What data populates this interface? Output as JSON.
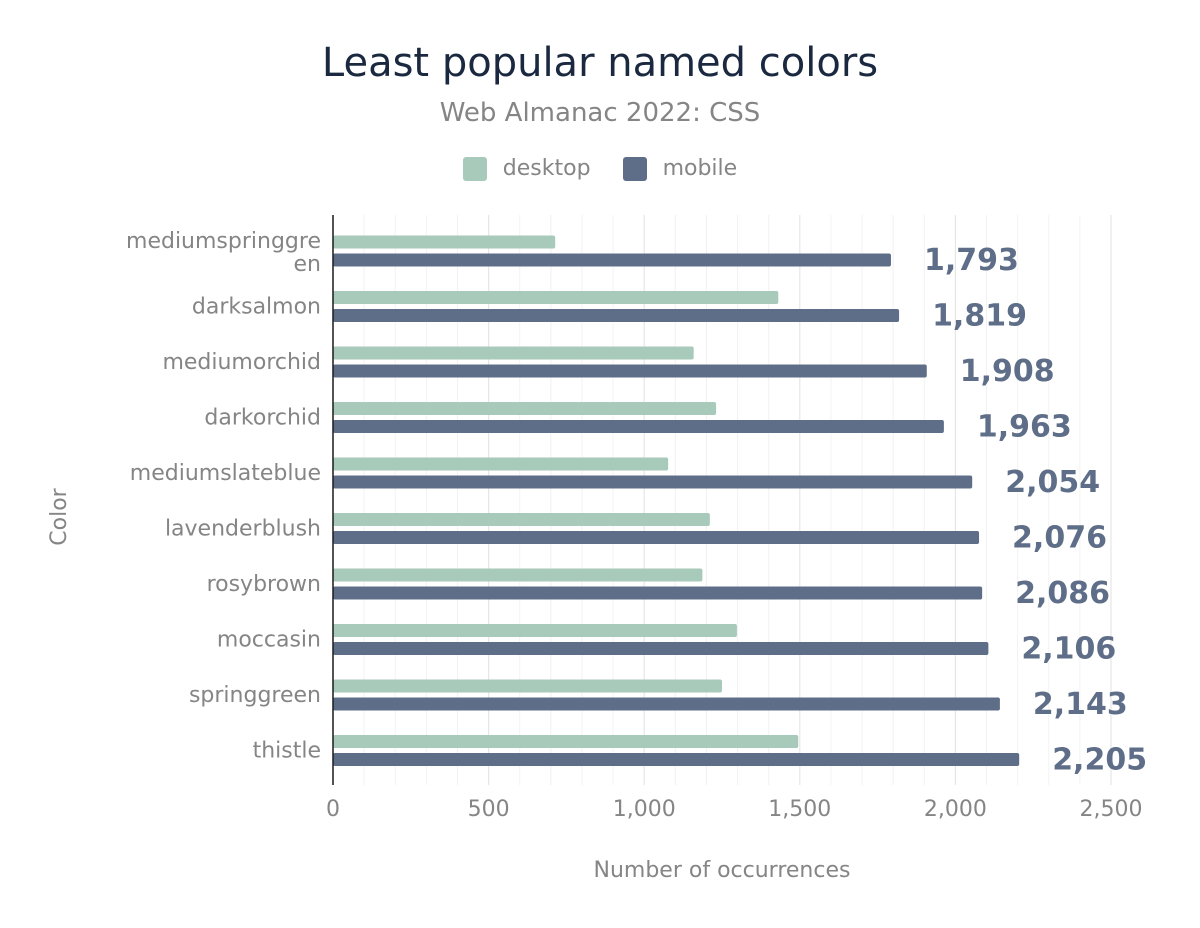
{
  "chart_data": {
    "type": "bar",
    "orientation": "horizontal",
    "title": "Least popular named colors",
    "subtitle": "Web Almanac 2022: CSS",
    "xlabel": "Number of occurrences",
    "ylabel": "Color",
    "xlim": [
      0,
      2500
    ],
    "xticks": [
      0,
      500,
      1000,
      1500,
      2000,
      2500
    ],
    "xtick_labels": [
      "0",
      "500",
      "1,000",
      "1,500",
      "2,000",
      "2,500"
    ],
    "grid": true,
    "legend_position": "top-center",
    "categories": [
      "mediumspringgreen",
      "darksalmon",
      "mediumorchid",
      "darkorchid",
      "mediumslateblue",
      "lavenderblush",
      "rosybrown",
      "moccasin",
      "springgreen",
      "thistle"
    ],
    "category_label_lines": [
      [
        "mediumspringgre",
        "en"
      ],
      [
        "darksalmon"
      ],
      [
        "mediumorchid"
      ],
      [
        "darkorchid"
      ],
      [
        "mediumslateblue"
      ],
      [
        "lavenderblush"
      ],
      [
        "rosybrown"
      ],
      [
        "moccasin"
      ],
      [
        "springgreen"
      ],
      [
        "thistle"
      ]
    ],
    "series": [
      {
        "name": "desktop",
        "color": "#a8cabb",
        "values": [
          714,
          1431,
          1159,
          1231,
          1077,
          1211,
          1187,
          1298,
          1250,
          1495
        ]
      },
      {
        "name": "mobile",
        "color": "#5f6e88",
        "values": [
          1793,
          1819,
          1908,
          1963,
          2054,
          2076,
          2086,
          2106,
          2143,
          2205
        ]
      }
    ],
    "value_labels": [
      "1,793",
      "1,819",
      "1,908",
      "1,963",
      "2,054",
      "2,076",
      "2,086",
      "2,106",
      "2,143",
      "2,205"
    ]
  }
}
